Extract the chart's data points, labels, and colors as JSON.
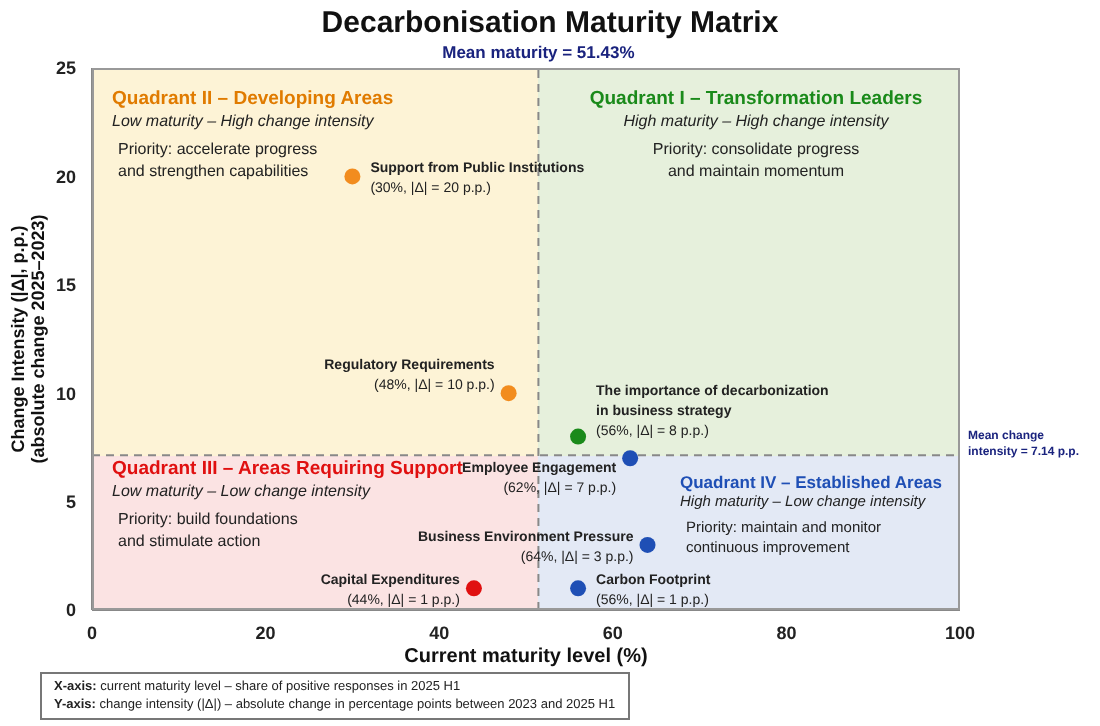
{
  "chart_data": {
    "type": "scatter",
    "title": "Decarbonisation Maturity Matrix",
    "xlabel": "Current maturity level (%)",
    "ylabel": "Change Intensity (|Δ|, p.p.)\n(absolute change 2025–2023)",
    "x": [
      30,
      48,
      56,
      62,
      64,
      56,
      44
    ],
    "values": [
      20,
      10,
      8,
      7,
      3,
      1,
      1
    ],
    "colors": [
      "#f28c1e",
      "#f28c1e",
      "#1a8a1a",
      "#1f4fb5",
      "#1f4fb5",
      "#1f4fb5",
      "#e01010"
    ],
    "value_labels": [
      "Support from Public Institutions\n(30%, |Δ| = 20 p.p.)",
      "Regulatory Requirements\n(48%, |Δ| = 10 p.p.)",
      "The importance of decarbonization\nin business strategy\n(56%, |Δ| = 8 p.p.)",
      "Employee Engagement\n(62%, |Δ| = 7 p.p.)",
      "Business Environment Pressure\n(64%, |Δ| = 3 p.p.)",
      "Carbon Footprint\n(56%, |Δ| = 1 p.p.)",
      "Capital Expenditures\n(44%, |Δ| = 1 p.p.)"
    ],
    "xlim": [
      0,
      100
    ],
    "xticks": [
      0,
      20,
      40,
      60,
      80,
      100
    ],
    "ylim": [
      0,
      25
    ],
    "yticks": [
      0,
      5,
      10,
      15,
      20,
      25
    ],
    "marker": "circle",
    "grid": false,
    "legend": false,
    "ref_lines": [
      {
        "axis": "x",
        "value": 51.43,
        "label": "Mean maturity = 51.43%",
        "color": "#888888",
        "line_style": "dashed"
      },
      {
        "axis": "y",
        "value": 7.14,
        "label": "Mean change intensity = 7.14 p.p.",
        "color": "#888888",
        "line_style": "dashed"
      }
    ],
    "annotations": [
      "Quadrant II – Developing Areas",
      "Low maturity – High change intensity",
      "Priority: accelerate progress\nand strengthen capabilities",
      "Quadrant I – Transformation Leaders",
      "High maturity – High change intensity",
      "Priority: consolidate progress\nand maintain momentum",
      "Quadrant III – Areas Requiring Support",
      "Low maturity – Low change intensity",
      "Priority: build foundations\nand stimulate action",
      "Quadrant IV – Established Areas",
      "High maturity – Low change intensity",
      "Priority: maintain and monitor\ncontinuous improvement",
      "X-axis: current maturity level – share of positive responses in 2025 H1",
      "Y-axis: change intensity (|Δ|) – absolute change in percentage points between 2023 and 2025 H1"
    ]
  }
}
